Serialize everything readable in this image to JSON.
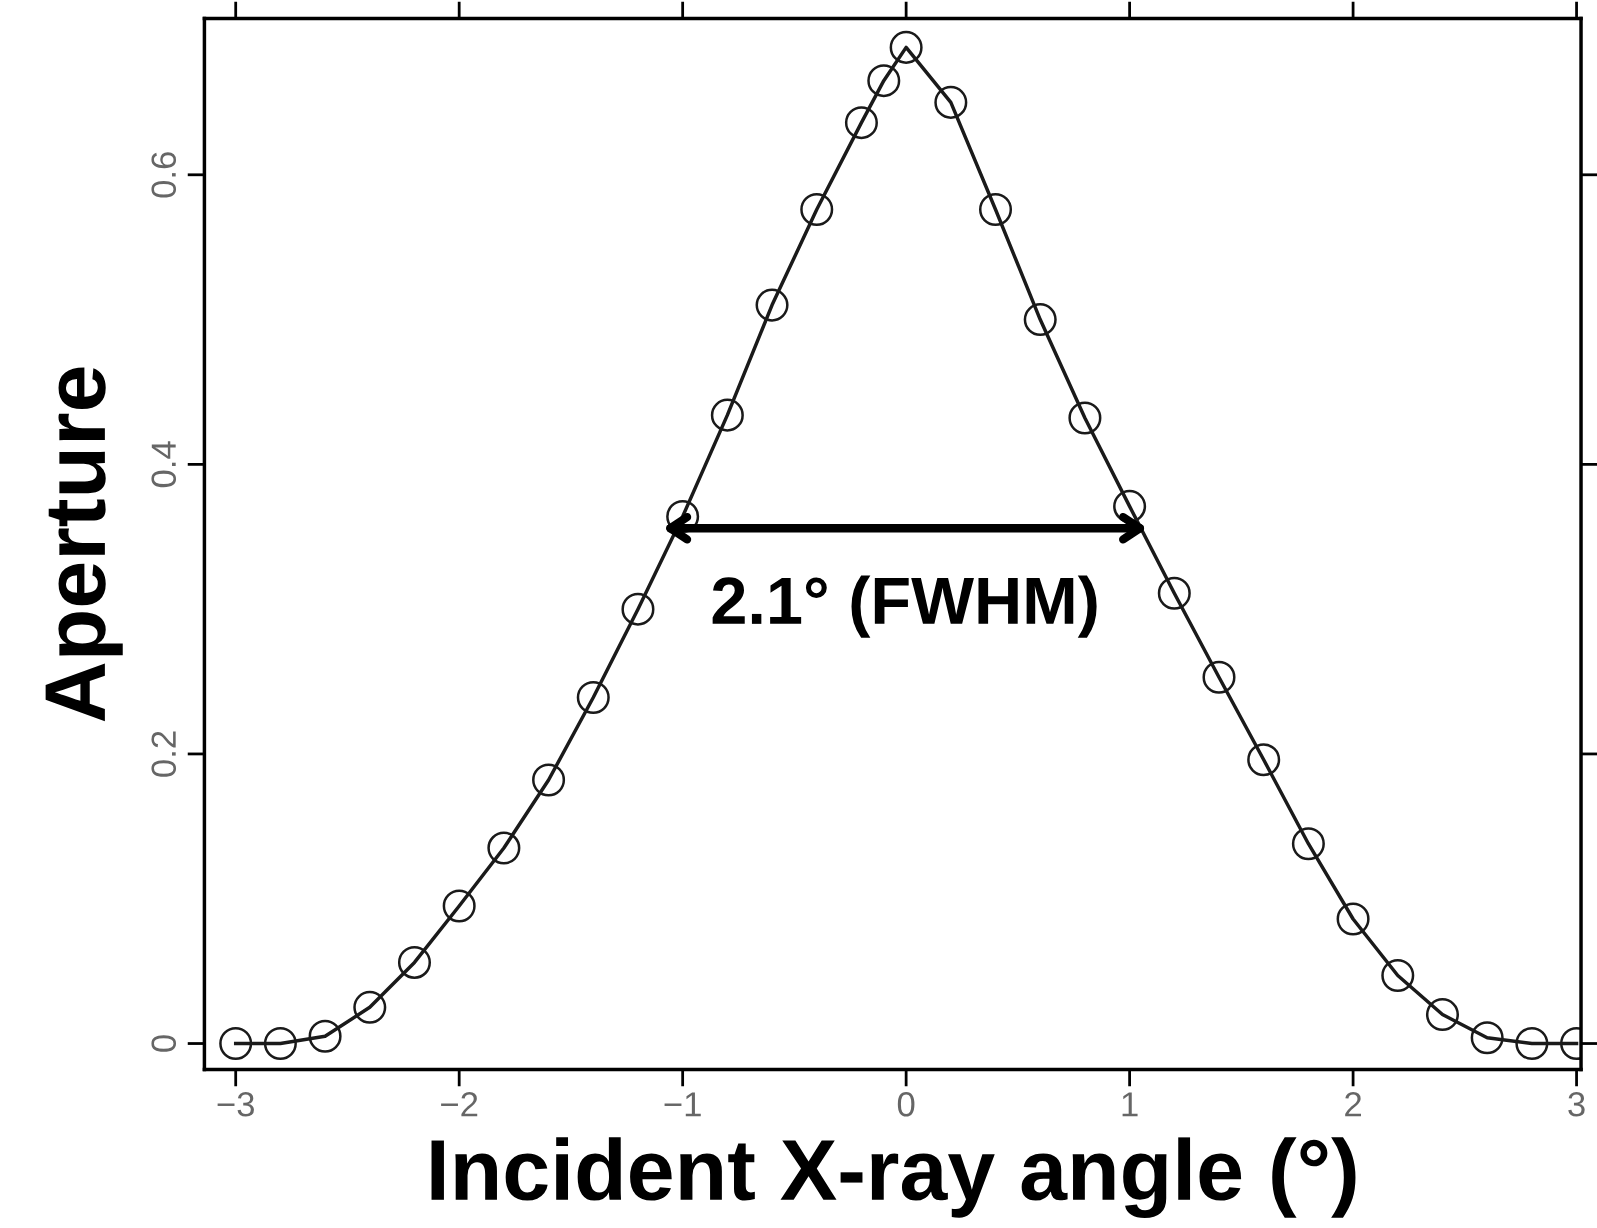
{
  "chart_data": {
    "type": "line",
    "xlabel": "Incident X-ray angle (°)",
    "ylabel": "Aperture",
    "x": [
      -3.0,
      -2.8,
      -2.6,
      -2.4,
      -2.2,
      -2.0,
      -1.8,
      -1.6,
      -1.4,
      -1.2,
      -1.0,
      -0.8,
      -0.6,
      -0.4,
      -0.2,
      -0.1,
      0.0,
      0.2,
      0.4,
      0.6,
      0.8,
      1.0,
      1.2,
      1.4,
      1.6,
      1.8,
      2.0,
      2.2,
      2.4,
      2.6,
      2.8,
      3.0
    ],
    "series": [
      {
        "color": "#1a1a1a",
        "values": [
          0.0,
          0.0,
          0.005,
          0.025,
          0.056,
          0.095,
          0.135,
          0.182,
          0.239,
          0.3,
          0.364,
          0.434,
          0.51,
          0.576,
          0.636,
          0.665,
          0.688,
          0.65,
          0.576,
          0.5,
          0.432,
          0.371,
          0.311,
          0.253,
          0.196,
          0.138,
          0.086,
          0.047,
          0.02,
          0.004,
          0.0,
          0.0
        ]
      }
    ],
    "marker": "circle",
    "line_style": "solid",
    "xlim": [
      -3.14,
      3.02
    ],
    "ylim": [
      -0.018,
      0.708
    ],
    "xticks": [
      {
        "value": -3,
        "label": "−3"
      },
      {
        "value": -2,
        "label": "−2"
      },
      {
        "value": -1,
        "label": "−1"
      },
      0,
      1,
      2,
      3
    ],
    "yticks": [
      0,
      0.2,
      0.4,
      0.6
    ],
    "annotations": [
      "2.1° (FWHM)"
    ],
    "grid": false
  }
}
